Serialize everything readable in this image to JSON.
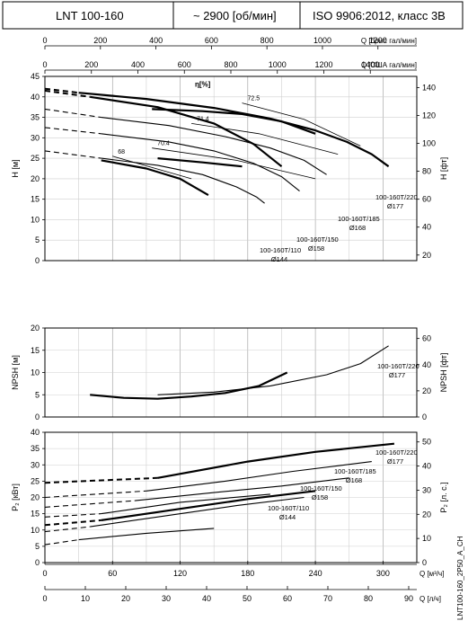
{
  "header": {
    "model": "LNT 100-160",
    "speed": "~ 2900 [об/мин]",
    "standard": "ISO 9906:2012, класс 3В"
  },
  "side_code": "LNT100-160_2P50_A_CH",
  "colors": {
    "line": "#000000",
    "grid": "#cfcfcf",
    "frame": "#000000"
  },
  "top_axes": {
    "uk": {
      "label": "Q [брит. гал/мин]",
      "ticks": [
        "0",
        "200",
        "400",
        "600",
        "800",
        "1000",
        "1200"
      ],
      "values": [
        0,
        200,
        400,
        600,
        800,
        1000,
        1200
      ]
    },
    "us": {
      "label": "Q [США гал/мин]",
      "ticks": [
        "0",
        "200",
        "400",
        "600",
        "800",
        "1000",
        "1200",
        "1400"
      ],
      "values": [
        0,
        200,
        400,
        600,
        800,
        1000,
        1200,
        1400
      ]
    }
  },
  "bottom_axes": {
    "m3h": {
      "label": "Q [м³/ч]",
      "ticks": [
        "0",
        "60",
        "120",
        "180",
        "240",
        "300"
      ],
      "values": [
        0,
        60,
        120,
        180,
        240,
        300
      ]
    },
    "ls": {
      "label": "Q [л/ч]",
      "ticks": [
        "0",
        "10",
        "20",
        "30",
        "40",
        "50",
        "60",
        "70",
        "80",
        "90"
      ],
      "values": [
        0,
        10,
        20,
        30,
        40,
        50,
        60,
        70,
        80,
        90
      ]
    }
  },
  "chart_data": [
    {
      "type": "line",
      "name": "head",
      "xlim": [
        0,
        330
      ],
      "ylabel": "H [м]",
      "ylim": [
        0,
        45
      ],
      "yticks": [
        "0",
        "5",
        "10",
        "15",
        "20",
        "25",
        "30",
        "35",
        "40",
        "45"
      ],
      "y2label": "H [фт]",
      "y2ticks": [
        "20",
        "40",
        "60",
        "80",
        "100",
        "120",
        "140"
      ],
      "efficiency_label": "η[%]",
      "efficiency_curves": [
        {
          "label": "72.5",
          "points": [
            [
              175,
              38.5
            ],
            [
              230,
              34.5
            ],
            [
              280,
              28
            ]
          ]
        },
        {
          "label": "71.4",
          "points": [
            [
              130,
              33.5
            ],
            [
              190,
              31
            ],
            [
              260,
              26
            ]
          ]
        },
        {
          "label": "70.4",
          "points": [
            [
              95,
              27.5
            ],
            [
              170,
              24.5
            ],
            [
              240,
              20
            ]
          ]
        },
        {
          "label": "68",
          "points": [
            [
              60,
              25.5
            ],
            [
              130,
              20
            ]
          ]
        }
      ],
      "series": [
        {
          "name": "100-160T/220",
          "sub": "Ø177",
          "dashed": [
            [
              0,
              42
            ],
            [
              30,
              41
            ]
          ],
          "points": [
            [
              30,
              41
            ],
            [
              90,
              39.5
            ],
            [
              150,
              37.3
            ],
            [
              200,
              34.7
            ],
            [
              240,
              31.8
            ],
            [
              268,
              29
            ],
            [
              290,
              26
            ],
            [
              305,
              23
            ]
          ]
        },
        {
          "name": "100-160T/185",
          "sub": "Ø168",
          "dashed": [
            [
              0,
              37
            ],
            [
              50,
              35
            ]
          ],
          "points": [
            [
              50,
              35
            ],
            [
              110,
              33
            ],
            [
              160,
              30.3
            ],
            [
              200,
              27.5
            ],
            [
              230,
              24.5
            ],
            [
              250,
              21
            ]
          ]
        },
        {
          "name": "100-160T/150",
          "sub": "Ø158",
          "dashed": [
            [
              0,
              32.5
            ],
            [
              50,
              31
            ]
          ],
          "points": [
            [
              50,
              31
            ],
            [
              110,
              29
            ],
            [
              150,
              26.8
            ],
            [
              185,
              23.8
            ],
            [
              210,
              20.5
            ],
            [
              226,
              17
            ]
          ]
        },
        {
          "name": "100-160T/110",
          "sub": "Ø144",
          "dashed": [
            [
              0,
              26.8
            ],
            [
              50,
              25
            ]
          ],
          "points": [
            [
              50,
              25
            ],
            [
              100,
              23.3
            ],
            [
              140,
              21
            ],
            [
              170,
              18
            ],
            [
              188,
              15.5
            ],
            [
              195,
              14
            ]
          ]
        },
        {
          "name": "",
          "sub": "",
          "dashed": [
            [
              0,
              41.5
            ],
            [
              40,
              40
            ]
          ],
          "points": [
            [
              40,
              40
            ],
            [
              100,
              37.5
            ],
            [
              150,
              33.5
            ],
            [
              185,
              28.5
            ],
            [
              210,
              23
            ]
          ]
        },
        {
          "name": "",
          "sub": "",
          "dashed": [],
          "points": [
            [
              50,
              24.5
            ],
            [
              90,
              22.5
            ],
            [
              120,
              20
            ],
            [
              145,
              16
            ]
          ]
        },
        {
          "name": "",
          "sub": "",
          "dashed": [],
          "points": [
            [
              95,
              37
            ],
            [
              140,
              36.5
            ],
            [
              175,
              35.8
            ],
            [
              210,
              34
            ],
            [
              240,
              31
            ]
          ]
        },
        {
          "name": "",
          "sub": "",
          "dashed": [],
          "points": [
            [
              100,
              25
            ],
            [
              140,
              24
            ],
            [
              175,
              23
            ]
          ]
        }
      ]
    },
    {
      "type": "line",
      "name": "npsh",
      "xlim": [
        0,
        330
      ],
      "ylabel": "NPSH [м]",
      "ylim": [
        0,
        20
      ],
      "yticks": [
        "0",
        "5",
        "10",
        "15",
        "20"
      ],
      "y2label": "NPSH [фт]",
      "y2ticks": [
        "0",
        "20",
        "40",
        "60"
      ],
      "series": [
        {
          "name": "100-160T/220",
          "sub": "Ø177",
          "points": [
            [
              40,
              5
            ],
            [
              70,
              4.3
            ],
            [
              100,
              4.1
            ],
            [
              130,
              4.6
            ],
            [
              160,
              5.4
            ],
            [
              190,
              7
            ],
            [
              215,
              10
            ]
          ]
        },
        {
          "name": "",
          "sub": "",
          "points": [
            [
              100,
              5
            ],
            [
              150,
              5.6
            ],
            [
              200,
              7
            ],
            [
              250,
              9.5
            ],
            [
              280,
              12
            ],
            [
              305,
              16
            ]
          ]
        }
      ]
    },
    {
      "type": "line",
      "name": "power",
      "xlim": [
        0,
        330
      ],
      "ylabel": "P₂ [кВт]",
      "ylim": [
        0,
        40
      ],
      "yticks": [
        "0",
        "5",
        "10",
        "15",
        "20",
        "25",
        "30",
        "35",
        "40"
      ],
      "y2label": "P₂ [л. с.]",
      "y2ticks": [
        "0",
        "10",
        "20",
        "30",
        "40",
        "50"
      ],
      "series": [
        {
          "name": "100-160T/220",
          "sub": "Ø177",
          "dashed": [
            [
              0,
              24.5
            ],
            [
              100,
              26
            ]
          ],
          "points": [
            [
              100,
              26
            ],
            [
              180,
              31
            ],
            [
              240,
              34
            ],
            [
              310,
              36.5
            ]
          ]
        },
        {
          "name": "100-160T/185",
          "sub": "Ø168",
          "dashed": [
            [
              0,
              20
            ],
            [
              90,
              22
            ]
          ],
          "points": [
            [
              90,
              22
            ],
            [
              160,
              25
            ],
            [
              220,
              28
            ],
            [
              290,
              31
            ]
          ]
        },
        {
          "name": "100-160T/150",
          "sub": "Ø158",
          "dashed": [
            [
              0,
              17
            ],
            [
              80,
              19
            ]
          ],
          "points": [
            [
              80,
              19
            ],
            [
              150,
              21.5
            ],
            [
              210,
              23.5
            ],
            [
              270,
              26
            ]
          ]
        },
        {
          "name": "100-160T/110",
          "sub": "Ø144",
          "dashed": [
            [
              0,
              11.5
            ],
            [
              50,
              13
            ]
          ],
          "points": [
            [
              50,
              13
            ],
            [
              120,
              16.5
            ],
            [
              180,
              19.5
            ],
            [
              240,
              22
            ]
          ]
        },
        {
          "name": "",
          "sub": "",
          "dashed": [
            [
              0,
              9.5
            ],
            [
              40,
              11
            ]
          ],
          "points": [
            [
              40,
              11
            ],
            [
              110,
              14.5
            ],
            [
              170,
              17.5
            ],
            [
              230,
              20
            ]
          ]
        },
        {
          "name": "",
          "sub": "",
          "dashed": [
            [
              0,
              5.5
            ],
            [
              30,
              7
            ]
          ],
          "points": [
            [
              30,
              7
            ],
            [
              90,
              9
            ],
            [
              150,
              10.5
            ]
          ]
        },
        {
          "name": "",
          "sub": "",
          "dashed": [
            [
              0,
              14
            ],
            [
              50,
              15
            ]
          ],
          "points": [
            [
              50,
              15
            ],
            [
              120,
              18.5
            ],
            [
              200,
              21
            ]
          ]
        }
      ]
    }
  ]
}
